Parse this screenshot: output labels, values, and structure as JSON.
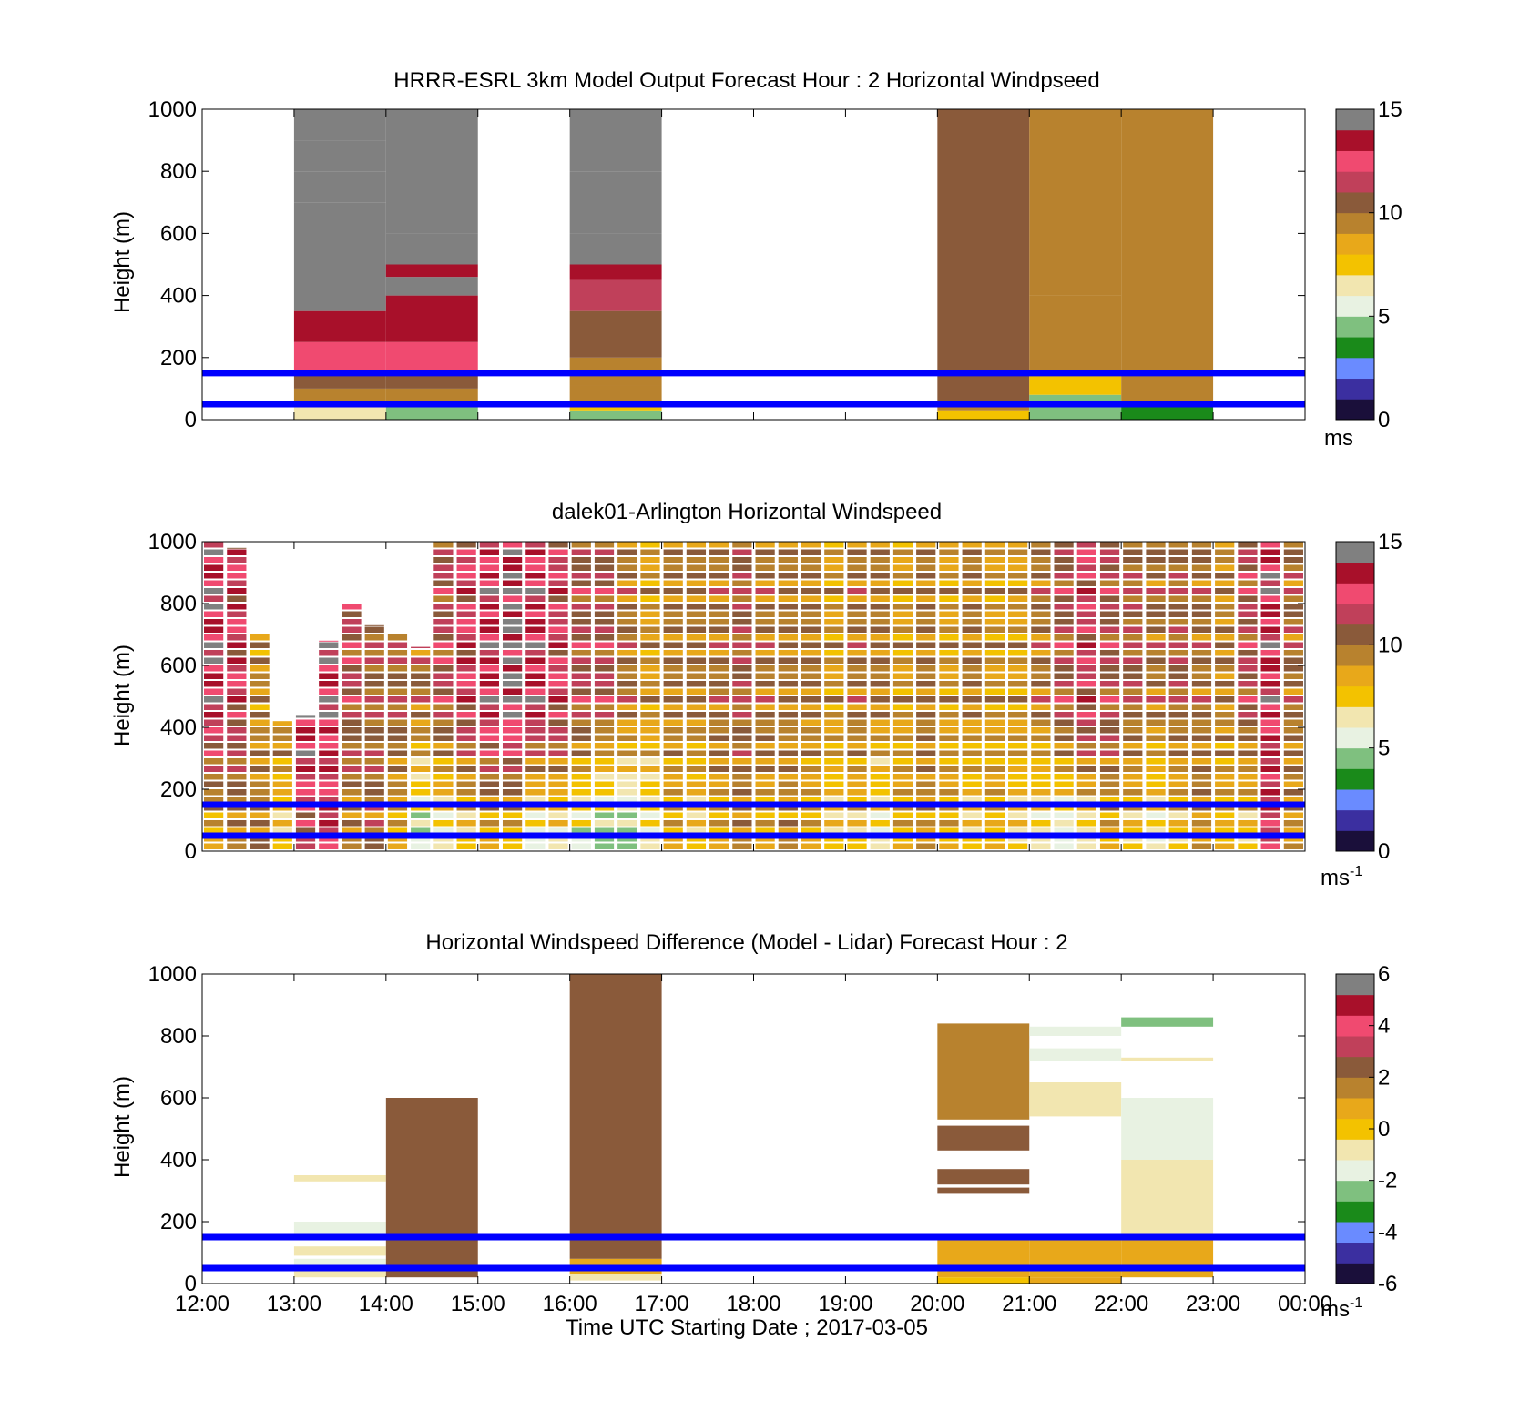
{
  "colors": {
    "reference_line": "#0000ff",
    "speed_colormap": [
      "#1a0f3a",
      "#3b2fa0",
      "#6a8bff",
      "#1a8a1a",
      "#7fc07f",
      "#e8f2e2",
      "#f2e6b0",
      "#f3c200",
      "#e8a81a",
      "#b8822e",
      "#8a5a3a",
      "#c0405a",
      "#f04a70",
      "#a8102a",
      "#808080"
    ],
    "diff_colormap": [
      "#1a0f3a",
      "#3b2fa0",
      "#6a8bff",
      "#1a8a1a",
      "#7fc07f",
      "#e8f2e2",
      "#f2e6b0",
      "#f3c200",
      "#e8a81a",
      "#b8822e",
      "#8a5a3a",
      "#c0405a",
      "#f04a70",
      "#a8102a",
      "#808080"
    ]
  },
  "chart_data": [
    {
      "type": "heatmap",
      "title": "HRRR-ESRL 3km Model Output   Forecast Hour : 2 Horizontal Windpseed",
      "xlabel": "",
      "ylabel": "Height (m)",
      "xlim": [
        12,
        24
      ],
      "ylim": [
        0,
        1000
      ],
      "yticks": [
        "0",
        "200",
        "400",
        "600",
        "800",
        "1000"
      ],
      "colorbar": {
        "ticks": [
          "0",
          "5",
          "10",
          "15"
        ],
        "range": [
          0,
          15
        ],
        "unit": "ms",
        "unit_sup": ""
      },
      "reference_lines_m": [
        50,
        150
      ],
      "columns": [
        {
          "hour": 13,
          "top": 1000,
          "blocks": [
            [
              0,
              40,
              6.5
            ],
            [
              40,
              60,
              8
            ],
            [
              60,
              100,
              9.5
            ],
            [
              100,
              150,
              10.5
            ],
            [
              150,
              250,
              12
            ],
            [
              250,
              350,
              13.5
            ],
            [
              350,
              700,
              14
            ],
            [
              700,
              800,
              14.5
            ],
            [
              800,
              900,
              15
            ],
            [
              900,
              1000,
              16
            ]
          ]
        },
        {
          "hour": 14,
          "top": 1000,
          "blocks": [
            [
              0,
              40,
              4.5
            ],
            [
              40,
              60,
              8.5
            ],
            [
              60,
              100,
              9.5
            ],
            [
              100,
              150,
              10.5
            ],
            [
              150,
              250,
              12
            ],
            [
              250,
              400,
              13.5
            ],
            [
              400,
              460,
              14
            ],
            [
              460,
              500,
              13.5
            ],
            [
              500,
              600,
              15
            ],
            [
              600,
              1000,
              16
            ]
          ]
        },
        {
          "hour": 16,
          "top": 1000,
          "blocks": [
            [
              0,
              30,
              4
            ],
            [
              30,
              60,
              7
            ],
            [
              60,
              110,
              9
            ],
            [
              110,
              200,
              9.5
            ],
            [
              200,
              350,
              10.5
            ],
            [
              350,
              450,
              11.5
            ],
            [
              450,
              500,
              13
            ],
            [
              500,
              600,
              14
            ],
            [
              600,
              800,
              14.5
            ],
            [
              800,
              1000,
              15
            ]
          ]
        },
        {
          "hour": 20,
          "top": 1000,
          "blocks": [
            [
              0,
              30,
              7
            ],
            [
              30,
              60,
              9
            ],
            [
              60,
              1000,
              10.5
            ]
          ]
        },
        {
          "hour": 21,
          "top": 1000,
          "blocks": [
            [
              0,
              80,
              4.5
            ],
            [
              80,
              150,
              7.5
            ],
            [
              150,
              400,
              9
            ],
            [
              400,
              1000,
              9.5
            ]
          ]
        },
        {
          "hour": 22,
          "top": 1000,
          "blocks": [
            [
              0,
              40,
              3
            ],
            [
              40,
              60,
              8
            ],
            [
              60,
              1000,
              9.5
            ]
          ]
        }
      ]
    },
    {
      "type": "heatmap",
      "title": "dalek01-Arlington  Horizontal Windspeed",
      "xlabel": "",
      "ylabel": "Height (m)",
      "xlim": [
        12,
        24
      ],
      "ylim": [
        0,
        1000
      ],
      "yticks": [
        "0",
        "200",
        "400",
        "600",
        "800",
        "1000"
      ],
      "colorbar": {
        "ticks": [
          "0",
          "5",
          "10",
          "15"
        ],
        "range": [
          0,
          15
        ],
        "unit": "ms",
        "unit_sup": "-1"
      },
      "reference_lines_m": [
        50,
        150
      ],
      "slots_per_hour": 4,
      "slot_tops_m": [
        1000,
        980,
        700,
        420,
        440,
        680,
        800,
        730,
        700,
        660,
        1000,
        1000,
        1000,
        1000,
        1000,
        1000,
        1000,
        1000,
        1000,
        1000,
        1000,
        1000,
        1000,
        1000,
        1000,
        1000,
        1000,
        1000,
        1000,
        1000,
        1000,
        1000,
        1000,
        1000,
        1000,
        1000,
        1000,
        1000,
        1000,
        1000,
        1000,
        1000,
        1000,
        1000,
        1000,
        1000,
        1000,
        1000
      ],
      "profile_lowlevel_ms": [
        8,
        9,
        10,
        7,
        11,
        12,
        9,
        10,
        8,
        5,
        6,
        7,
        8,
        7,
        5,
        6,
        5,
        4,
        4,
        6,
        8,
        7,
        8,
        9,
        8,
        9,
        8,
        7,
        7,
        6,
        8,
        9,
        8,
        7,
        8,
        7,
        6,
        5,
        6,
        8,
        7,
        6,
        7,
        9,
        8,
        7,
        12,
        9
      ],
      "profile_upper_ms": [
        13,
        12,
        9,
        10,
        14,
        13,
        11,
        10.5,
        10.5,
        10,
        11,
        12,
        13,
        14,
        13,
        12,
        11,
        11,
        10,
        9,
        9.5,
        9.5,
        10,
        10.5,
        10,
        9.5,
        9.5,
        9,
        10,
        9.5,
        9,
        9.5,
        9,
        9.5,
        9,
        9,
        10,
        11,
        12,
        11,
        10.5,
        10,
        10.5,
        10,
        9.5,
        11,
        13,
        10
      ]
    },
    {
      "type": "heatmap",
      "title": "Horizontal Windspeed Difference (Model - Lidar) Forecast Hour : 2",
      "xlabel": "Time UTC  Starting Date ; 2017-03-05",
      "ylabel": "Height (m)",
      "xlim": [
        12,
        24
      ],
      "ylim": [
        0,
        1000
      ],
      "xticks": [
        "12:00",
        "13:00",
        "14:00",
        "15:00",
        "16:00",
        "17:00",
        "18:00",
        "19:00",
        "20:00",
        "21:00",
        "22:00",
        "23:00",
        "00:00"
      ],
      "yticks": [
        "0",
        "200",
        "400",
        "600",
        "800",
        "1000"
      ],
      "colorbar": {
        "ticks": [
          "-6",
          "-4",
          "-2",
          "0",
          "2",
          "4",
          "6"
        ],
        "range": [
          -6,
          6
        ],
        "unit": "ms",
        "unit_sup": "-1"
      },
      "reference_lines_m": [
        50,
        150
      ],
      "columns": [
        {
          "hour": 13,
          "blocks": [
            [
              20,
              40,
              -1
            ],
            [
              60,
              80,
              -1.5
            ],
            [
              90,
              120,
              -1
            ],
            [
              150,
              200,
              -1.5
            ],
            [
              330,
              350,
              -1
            ]
          ]
        },
        {
          "hour": 14,
          "blocks": [
            [
              20,
              600,
              2
            ]
          ]
        },
        {
          "hour": 16,
          "blocks": [
            [
              10,
              30,
              -0.5
            ],
            [
              30,
              80,
              0.5
            ],
            [
              80,
              1000,
              2
            ]
          ]
        },
        {
          "hour": 20,
          "blocks": [
            [
              0,
              20,
              0.3
            ],
            [
              20,
              150,
              1
            ],
            [
              290,
              310,
              2
            ],
            [
              320,
              370,
              2.5
            ],
            [
              430,
              510,
              2
            ],
            [
              530,
              840,
              1.5
            ]
          ]
        },
        {
          "hour": 21,
          "blocks": [
            [
              0,
              20,
              0.5
            ],
            [
              20,
              150,
              1
            ],
            [
              540,
              650,
              -0.5
            ],
            [
              720,
              760,
              -2
            ],
            [
              800,
              830,
              -1.5
            ]
          ]
        },
        {
          "hour": 22,
          "blocks": [
            [
              20,
              150,
              0.5
            ],
            [
              150,
              400,
              -0.5
            ],
            [
              400,
              600,
              -2
            ],
            [
              720,
              730,
              -0.5
            ],
            [
              830,
              860,
              -2.5
            ]
          ]
        }
      ]
    }
  ]
}
